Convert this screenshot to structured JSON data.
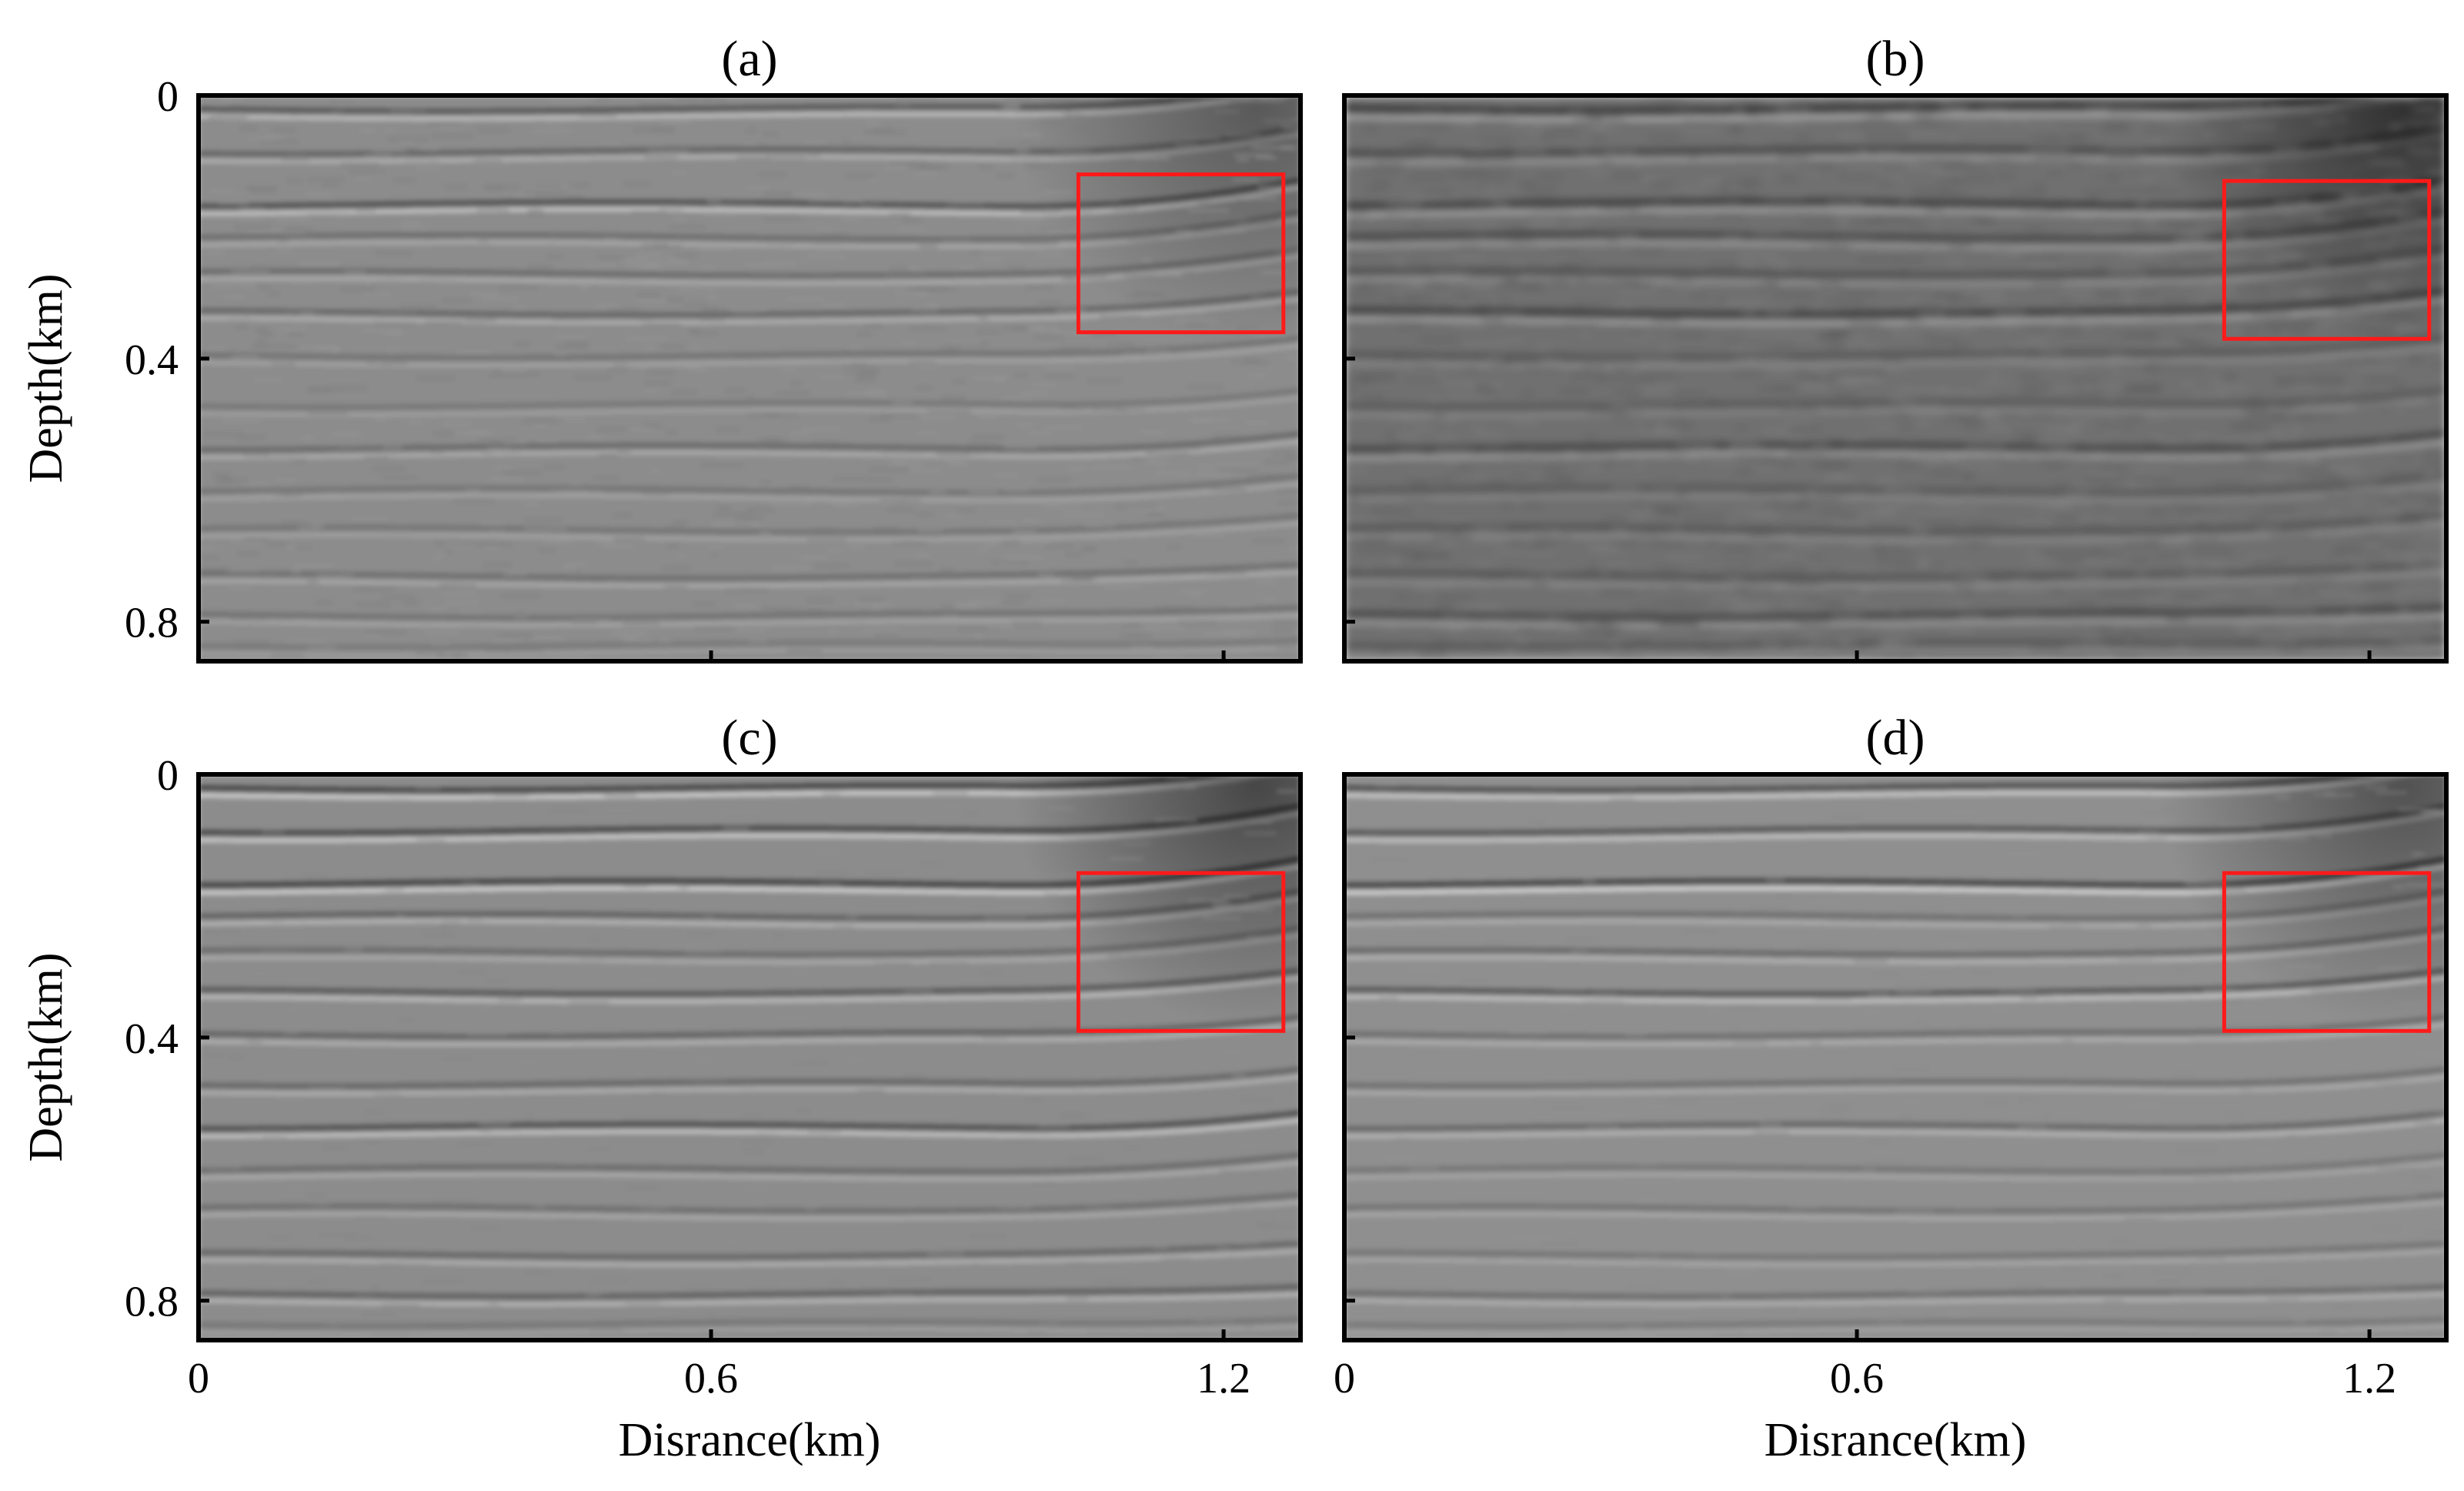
{
  "figure": {
    "panels": [
      {
        "id": "a",
        "title": "(a)",
        "y_label": "Depth(km)",
        "x_label": "",
        "y_ticks": [
          "0",
          "0.4",
          "0.8"
        ],
        "x_ticks": [],
        "box": {
          "x0": 1.03,
          "x1": 1.27,
          "y0": 0.12,
          "y1": 0.36
        },
        "style": {
          "bg": 140,
          "contrast": 0.55,
          "blur": 1.6,
          "noise": 0.35
        }
      },
      {
        "id": "b",
        "title": "(b)",
        "y_label": "",
        "x_label": "",
        "y_ticks": [],
        "x_ticks": [],
        "box": {
          "x0": 1.03,
          "x1": 1.27,
          "y0": 0.13,
          "y1": 0.37
        },
        "style": {
          "bg": 112,
          "contrast": 0.85,
          "blur": 2.4,
          "noise": 0.6
        }
      },
      {
        "id": "c",
        "title": "(c)",
        "y_label": "Depth(km)",
        "x_label": "Disrance(km)",
        "y_ticks": [
          "0",
          "0.4",
          "0.8"
        ],
        "x_ticks": [
          "0",
          "0.6",
          "1.2"
        ],
        "box": {
          "x0": 1.03,
          "x1": 1.27,
          "y0": 0.15,
          "y1": 0.39
        },
        "style": {
          "bg": 140,
          "contrast": 0.75,
          "blur": 1.4,
          "noise": 0.12
        }
      },
      {
        "id": "d",
        "title": "(d)",
        "y_label": "",
        "x_label": "Disrance(km)",
        "y_ticks": [],
        "x_ticks": [
          "0",
          "0.6",
          "1.2"
        ],
        "box": {
          "x0": 1.03,
          "x1": 1.27,
          "y0": 0.15,
          "y1": 0.39
        },
        "style": {
          "bg": 143,
          "contrast": 0.65,
          "blur": 1.4,
          "noise": 0.1
        }
      }
    ],
    "x_range_km": [
      0,
      1.29
    ],
    "y_range_km": [
      0,
      0.86
    ],
    "x_tick_values": [
      0,
      0.6,
      1.2
    ],
    "y_tick_values": [
      0,
      0.4,
      0.8
    ],
    "highlight_color": "#ff1a1a",
    "colormap": "grayscale seismic image"
  }
}
